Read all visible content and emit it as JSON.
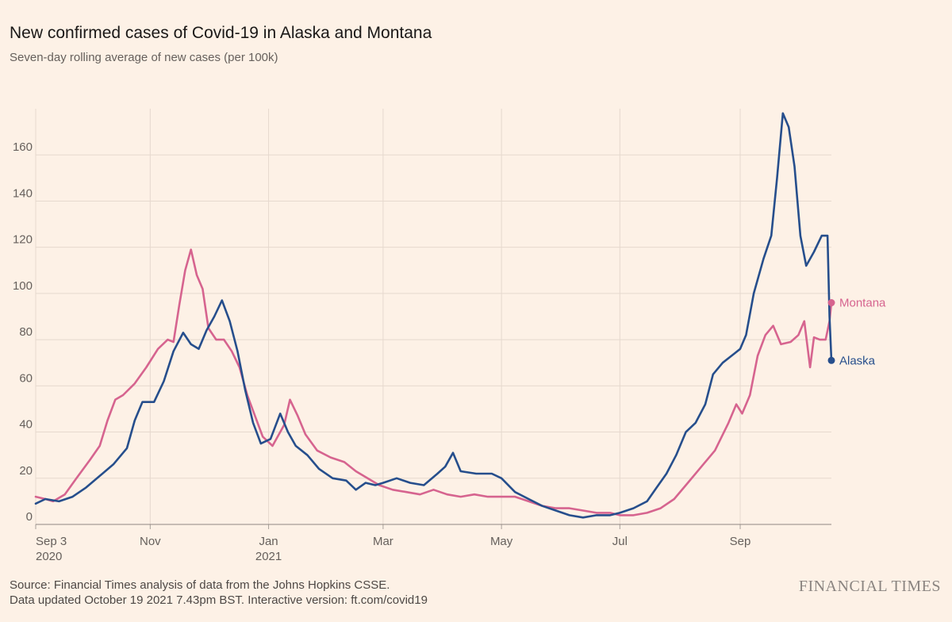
{
  "header": {
    "title": "New confirmed cases of Covid-19 in Alaska and Montana",
    "subtitle": "Seven-day rolling average of new cases (per 100k)"
  },
  "footer": {
    "source_line1": "Source: Financial Times analysis of data from the Johns Hopkins CSSE.",
    "source_line2": "Data updated October 19 2021 7.43pm BST. Interactive version: ft.com/covid19",
    "brand": "FINANCIAL TIMES"
  },
  "chart_data": {
    "type": "line",
    "title": "New confirmed cases of Covid-19 in Alaska and Montana",
    "subtitle": "Seven-day rolling average of new cases (per 100k)",
    "x_ticks": [
      {
        "date": "2020-09-03",
        "label": "Sep 3",
        "sub": "2020"
      },
      {
        "date": "2020-11-01",
        "label": "Nov",
        "sub": ""
      },
      {
        "date": "2021-01-01",
        "label": "Jan",
        "sub": "2021"
      },
      {
        "date": "2021-03-01",
        "label": "Mar",
        "sub": ""
      },
      {
        "date": "2021-05-01",
        "label": "May",
        "sub": ""
      },
      {
        "date": "2021-07-01",
        "label": "Jul",
        "sub": ""
      },
      {
        "date": "2021-09-01",
        "label": "Sep",
        "sub": ""
      }
    ],
    "xlim": [
      "2020-09-03",
      "2021-10-18"
    ],
    "ylim": [
      0,
      180
    ],
    "y_ticks": [
      0,
      20,
      40,
      60,
      80,
      100,
      120,
      140,
      160
    ],
    "grid": true,
    "series": [
      {
        "name": "Alaska",
        "color": "#264e8c",
        "end_value": 71,
        "points": [
          [
            "2020-09-03",
            9
          ],
          [
            "2020-09-08",
            11
          ],
          [
            "2020-09-15",
            10
          ],
          [
            "2020-09-22",
            12
          ],
          [
            "2020-09-29",
            16
          ],
          [
            "2020-10-06",
            21
          ],
          [
            "2020-10-13",
            26
          ],
          [
            "2020-10-20",
            33
          ],
          [
            "2020-10-24",
            45
          ],
          [
            "2020-10-28",
            53
          ],
          [
            "2020-11-03",
            53
          ],
          [
            "2020-11-08",
            62
          ],
          [
            "2020-11-13",
            75
          ],
          [
            "2020-11-18",
            83
          ],
          [
            "2020-11-22",
            78
          ],
          [
            "2020-11-26",
            76
          ],
          [
            "2020-11-30",
            84
          ],
          [
            "2020-12-04",
            90
          ],
          [
            "2020-12-08",
            97
          ],
          [
            "2020-12-12",
            88
          ],
          [
            "2020-12-16",
            75
          ],
          [
            "2020-12-20",
            58
          ],
          [
            "2020-12-24",
            44
          ],
          [
            "2020-12-28",
            35
          ],
          [
            "2021-01-02",
            37
          ],
          [
            "2021-01-07",
            48
          ],
          [
            "2021-01-11",
            40
          ],
          [
            "2021-01-15",
            34
          ],
          [
            "2021-01-21",
            30
          ],
          [
            "2021-01-27",
            24
          ],
          [
            "2021-02-03",
            20
          ],
          [
            "2021-02-10",
            19
          ],
          [
            "2021-02-15",
            15
          ],
          [
            "2021-02-20",
            18
          ],
          [
            "2021-02-25",
            17
          ],
          [
            "2021-03-01",
            18
          ],
          [
            "2021-03-08",
            20
          ],
          [
            "2021-03-15",
            18
          ],
          [
            "2021-03-22",
            17
          ],
          [
            "2021-03-29",
            22
          ],
          [
            "2021-04-02",
            25
          ],
          [
            "2021-04-06",
            31
          ],
          [
            "2021-04-10",
            23
          ],
          [
            "2021-04-18",
            22
          ],
          [
            "2021-04-26",
            22
          ],
          [
            "2021-05-01",
            20
          ],
          [
            "2021-05-08",
            14
          ],
          [
            "2021-05-15",
            11
          ],
          [
            "2021-05-22",
            8
          ],
          [
            "2021-05-29",
            6
          ],
          [
            "2021-06-05",
            4
          ],
          [
            "2021-06-12",
            3
          ],
          [
            "2021-06-19",
            4
          ],
          [
            "2021-06-26",
            4
          ],
          [
            "2021-07-01",
            5
          ],
          [
            "2021-07-08",
            7
          ],
          [
            "2021-07-15",
            10
          ],
          [
            "2021-07-20",
            16
          ],
          [
            "2021-07-25",
            22
          ],
          [
            "2021-07-30",
            30
          ],
          [
            "2021-08-04",
            40
          ],
          [
            "2021-08-09",
            44
          ],
          [
            "2021-08-14",
            52
          ],
          [
            "2021-08-18",
            65
          ],
          [
            "2021-08-23",
            70
          ],
          [
            "2021-08-29",
            74
          ],
          [
            "2021-09-01",
            76
          ],
          [
            "2021-09-04",
            82
          ],
          [
            "2021-09-08",
            100
          ],
          [
            "2021-09-13",
            115
          ],
          [
            "2021-09-17",
            125
          ],
          [
            "2021-09-20",
            150
          ],
          [
            "2021-09-23",
            178
          ],
          [
            "2021-09-26",
            172
          ],
          [
            "2021-09-29",
            155
          ],
          [
            "2021-10-02",
            125
          ],
          [
            "2021-10-05",
            112
          ],
          [
            "2021-10-09",
            118
          ],
          [
            "2021-10-13",
            125
          ],
          [
            "2021-10-16",
            125
          ],
          [
            "2021-10-17",
            90
          ],
          [
            "2021-10-18",
            71
          ]
        ]
      },
      {
        "name": "Montana",
        "color": "#d6648f",
        "end_value": 96,
        "points": [
          [
            "2020-09-03",
            12
          ],
          [
            "2020-09-08",
            11
          ],
          [
            "2020-09-12",
            10
          ],
          [
            "2020-09-18",
            13
          ],
          [
            "2020-09-24",
            20
          ],
          [
            "2020-10-01",
            28
          ],
          [
            "2020-10-06",
            34
          ],
          [
            "2020-10-10",
            45
          ],
          [
            "2020-10-14",
            54
          ],
          [
            "2020-10-18",
            56
          ],
          [
            "2020-10-24",
            61
          ],
          [
            "2020-10-30",
            68
          ],
          [
            "2020-11-05",
            76
          ],
          [
            "2020-11-10",
            80
          ],
          [
            "2020-11-13",
            79
          ],
          [
            "2020-11-16",
            95
          ],
          [
            "2020-11-19",
            110
          ],
          [
            "2020-11-22",
            119
          ],
          [
            "2020-11-25",
            108
          ],
          [
            "2020-11-28",
            102
          ],
          [
            "2020-12-01",
            85
          ],
          [
            "2020-12-05",
            80
          ],
          [
            "2020-12-09",
            80
          ],
          [
            "2020-12-13",
            75
          ],
          [
            "2020-12-17",
            68
          ],
          [
            "2020-12-21",
            56
          ],
          [
            "2020-12-25",
            47
          ],
          [
            "2020-12-29",
            38
          ],
          [
            "2021-01-03",
            34
          ],
          [
            "2021-01-09",
            43
          ],
          [
            "2021-01-12",
            54
          ],
          [
            "2021-01-16",
            47
          ],
          [
            "2021-01-20",
            39
          ],
          [
            "2021-01-26",
            32
          ],
          [
            "2021-02-02",
            29
          ],
          [
            "2021-02-09",
            27
          ],
          [
            "2021-02-15",
            23
          ],
          [
            "2021-02-21",
            20
          ],
          [
            "2021-02-27",
            17
          ],
          [
            "2021-03-06",
            15
          ],
          [
            "2021-03-13",
            14
          ],
          [
            "2021-03-20",
            13
          ],
          [
            "2021-03-27",
            15
          ],
          [
            "2021-04-03",
            13
          ],
          [
            "2021-04-10",
            12
          ],
          [
            "2021-04-17",
            13
          ],
          [
            "2021-04-24",
            12
          ],
          [
            "2021-05-01",
            12
          ],
          [
            "2021-05-08",
            12
          ],
          [
            "2021-05-15",
            10
          ],
          [
            "2021-05-22",
            8
          ],
          [
            "2021-05-29",
            7
          ],
          [
            "2021-06-05",
            7
          ],
          [
            "2021-06-12",
            6
          ],
          [
            "2021-06-19",
            5
          ],
          [
            "2021-06-26",
            5
          ],
          [
            "2021-07-01",
            4
          ],
          [
            "2021-07-08",
            4
          ],
          [
            "2021-07-15",
            5
          ],
          [
            "2021-07-22",
            7
          ],
          [
            "2021-07-29",
            11
          ],
          [
            "2021-08-05",
            18
          ],
          [
            "2021-08-12",
            25
          ],
          [
            "2021-08-19",
            32
          ],
          [
            "2021-08-26",
            44
          ],
          [
            "2021-08-30",
            52
          ],
          [
            "2021-09-02",
            48
          ],
          [
            "2021-09-06",
            56
          ],
          [
            "2021-09-10",
            73
          ],
          [
            "2021-09-14",
            82
          ],
          [
            "2021-09-18",
            86
          ],
          [
            "2021-09-22",
            78
          ],
          [
            "2021-09-27",
            79
          ],
          [
            "2021-10-01",
            82
          ],
          [
            "2021-10-04",
            88
          ],
          [
            "2021-10-07",
            68
          ],
          [
            "2021-10-09",
            81
          ],
          [
            "2021-10-12",
            80
          ],
          [
            "2021-10-15",
            80
          ],
          [
            "2021-10-17",
            88
          ],
          [
            "2021-10-18",
            96
          ]
        ]
      }
    ]
  }
}
